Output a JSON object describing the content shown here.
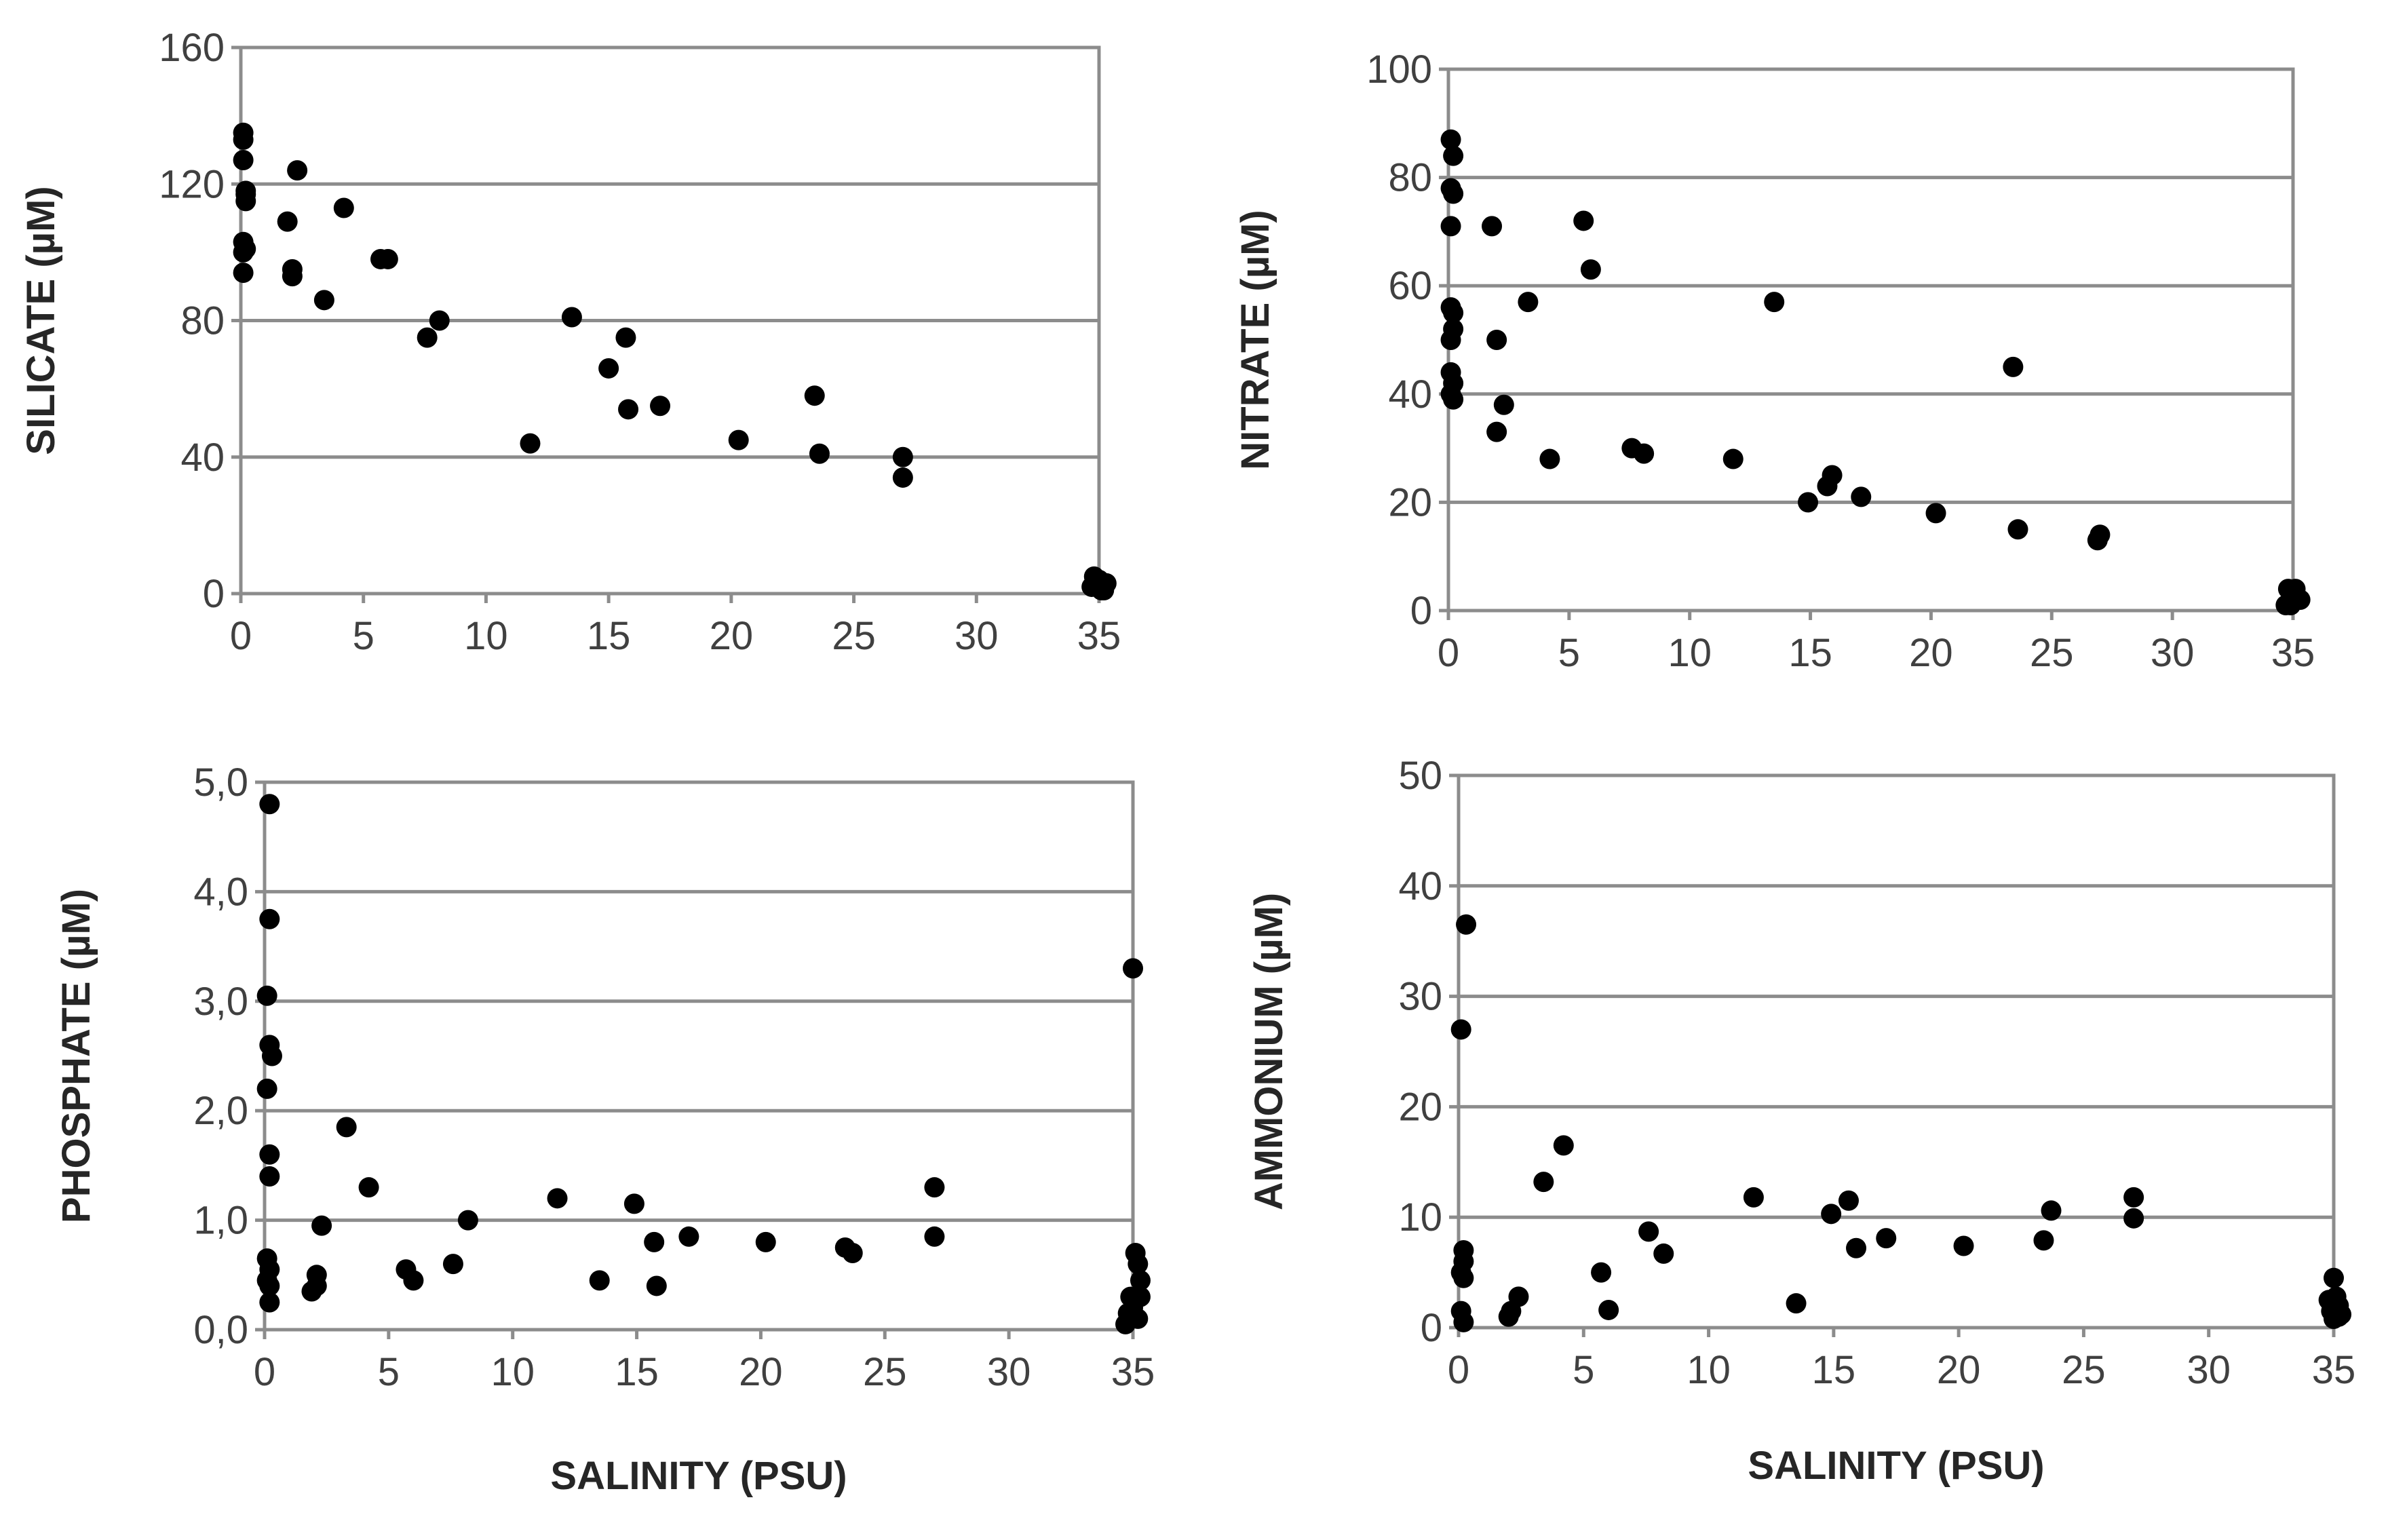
{
  "figure": {
    "marker_color": "#000000",
    "grid_color": "#8c8c8c",
    "text_color": "#404040"
  },
  "chart_data": [
    {
      "type": "scatter",
      "title": "",
      "xlabel": "",
      "ylabel": "SILICATE (µM)",
      "xlim": [
        0,
        35
      ],
      "ylim": [
        0,
        160
      ],
      "xticks": [
        0,
        5,
        10,
        15,
        20,
        25,
        30,
        35
      ],
      "yticks": [
        0,
        40,
        80,
        120,
        160
      ],
      "ytick_labels": [
        "0",
        "40",
        "80",
        "120",
        "160"
      ],
      "grid": true,
      "x": [
        0.1,
        0.1,
        0.1,
        0.2,
        0.2,
        0.1,
        0.2,
        0.1,
        0.1,
        0.2,
        2.3,
        1.9,
        4.2,
        2.1,
        2.1,
        3.4,
        5.7,
        6.0,
        7.6,
        8.1,
        11.8,
        13.5,
        15.7,
        15.0,
        15.8,
        17.1,
        20.3,
        23.4,
        23.6,
        27.0,
        27.0,
        34.8,
        35.0,
        35.2,
        34.9,
        35.1,
        35.3,
        35.0,
        34.7,
        35.2
      ],
      "y": [
        135,
        133,
        127,
        118,
        115,
        103,
        101,
        100,
        94,
        117,
        124,
        109,
        113,
        95,
        93,
        86,
        98,
        98,
        75,
        80,
        44,
        81,
        75,
        66,
        54,
        55,
        45,
        58,
        41,
        40,
        34,
        5,
        4,
        3,
        2,
        1,
        3,
        4,
        2,
        1
      ]
    },
    {
      "type": "scatter",
      "title": "",
      "xlabel": "",
      "ylabel": "NITRATE (µM)",
      "xlim": [
        0,
        35
      ],
      "ylim": [
        0,
        100
      ],
      "xticks": [
        0,
        5,
        10,
        15,
        20,
        25,
        30,
        35
      ],
      "yticks": [
        0,
        20,
        40,
        60,
        80,
        100
      ],
      "ytick_labels": [
        "0",
        "20",
        "40",
        "60",
        "80",
        "100"
      ],
      "grid": true,
      "x": [
        0.1,
        0.2,
        0.1,
        0.2,
        0.1,
        0.1,
        0.2,
        0.2,
        0.1,
        0.1,
        0.2,
        0.1,
        0.2,
        1.8,
        5.6,
        5.9,
        3.3,
        2.0,
        2.3,
        2.0,
        4.2,
        7.6,
        8.1,
        11.8,
        13.5,
        14.9,
        15.7,
        15.9,
        17.1,
        20.2,
        23.4,
        23.6,
        26.9,
        27.0,
        34.8,
        35.0,
        35.2,
        34.9,
        35.1,
        35.3,
        35.0,
        34.7
      ],
      "y": [
        87,
        84,
        78,
        77,
        71,
        56,
        55,
        52,
        50,
        44,
        42,
        40,
        39,
        71,
        72,
        63,
        57,
        50,
        38,
        33,
        28,
        30,
        29,
        28,
        57,
        20,
        23,
        25,
        21,
        18,
        45,
        15,
        13,
        14,
        4,
        3,
        2,
        1,
        4,
        2,
        3,
        1
      ]
    },
    {
      "type": "scatter",
      "title": "",
      "xlabel": "SALINITY (PSU)",
      "ylabel": "PHOSPHATE (µM)",
      "xlim": [
        0,
        35
      ],
      "ylim": [
        0,
        5
      ],
      "xticks": [
        0,
        5,
        10,
        15,
        20,
        25,
        30,
        35
      ],
      "yticks": [
        0,
        1,
        2,
        3,
        4,
        5
      ],
      "ytick_labels": [
        "0,0",
        "1,0",
        "2,0",
        "3,0",
        "4,0",
        "5,0"
      ],
      "grid": true,
      "x": [
        0.2,
        0.2,
        0.1,
        0.2,
        0.3,
        0.1,
        0.2,
        0.2,
        0.1,
        0.2,
        0.1,
        0.2,
        0.2,
        3.3,
        4.2,
        2.3,
        2.1,
        1.9,
        2.1,
        5.7,
        6.0,
        7.6,
        8.2,
        11.8,
        13.5,
        14.9,
        15.7,
        15.8,
        17.1,
        20.2,
        23.4,
        23.7,
        27.0,
        27.0,
        35.0,
        35.1,
        35.2,
        35.3,
        34.9,
        35.0,
        34.8,
        35.2,
        34.7,
        35.3
      ],
      "y": [
        4.8,
        3.75,
        3.05,
        2.6,
        2.5,
        2.2,
        1.6,
        1.4,
        0.65,
        0.55,
        0.45,
        0.4,
        0.25,
        1.85,
        1.3,
        0.95,
        0.5,
        0.35,
        0.4,
        0.55,
        0.45,
        0.6,
        1.0,
        1.2,
        0.45,
        1.15,
        0.8,
        0.4,
        0.85,
        0.8,
        0.75,
        0.7,
        1.3,
        0.85,
        3.3,
        0.7,
        0.6,
        0.45,
        0.3,
        0.2,
        0.15,
        0.1,
        0.05,
        0.3
      ]
    },
    {
      "type": "scatter",
      "title": "",
      "xlabel": "SALINITY (PSU)",
      "ylabel": "AMMONIUM (µM)",
      "xlim": [
        0,
        35
      ],
      "ylim": [
        0,
        50
      ],
      "xticks": [
        0,
        5,
        10,
        15,
        20,
        25,
        30,
        35
      ],
      "yticks": [
        0,
        10,
        20,
        30,
        40,
        50
      ],
      "ytick_labels": [
        "0",
        "10",
        "20",
        "30",
        "40",
        "50"
      ],
      "grid": true,
      "x": [
        0.3,
        0.1,
        0.2,
        0.2,
        0.1,
        0.2,
        0.1,
        0.2,
        3.4,
        4.2,
        2.4,
        2.0,
        2.1,
        5.7,
        6.0,
        7.6,
        8.2,
        11.8,
        13.5,
        14.9,
        15.6,
        15.9,
        17.1,
        20.2,
        23.4,
        23.7,
        27.0,
        27.0,
        35.0,
        35.1,
        35.2,
        34.9,
        35.3,
        35.0,
        34.8,
        35.2
      ],
      "y": [
        36.5,
        27,
        7,
        6,
        5,
        4.5,
        1.5,
        0.5,
        13.2,
        16.5,
        2.8,
        1.0,
        1.5,
        5,
        1.6,
        8.7,
        6.7,
        11.8,
        2.2,
        10.3,
        11.5,
        7.2,
        8.1,
        7.4,
        7.9,
        10.6,
        11.8,
        9.9,
        4.5,
        2.8,
        2.0,
        1.5,
        1.2,
        0.8,
        2.5,
        1.0
      ]
    }
  ]
}
